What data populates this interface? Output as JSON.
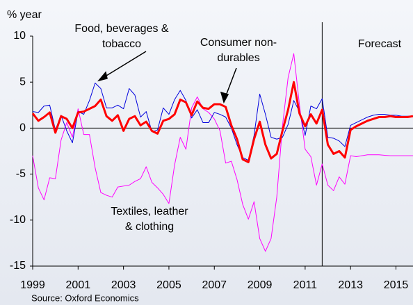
{
  "chart_data": {
    "type": "line",
    "y_label": "% year",
    "source": "Source: Oxford Economics",
    "xlim": [
      1999,
      2015.75
    ],
    "xticks": [
      1999,
      2001,
      2003,
      2005,
      2007,
      2009,
      2011,
      2013,
      2015
    ],
    "ylim": [
      -15,
      10
    ],
    "yticks": [
      -15,
      -10,
      -5,
      0,
      5,
      10
    ],
    "forecast": {
      "label": "Forecast",
      "x": 2011.75
    },
    "x": [
      1999,
      1999.25,
      1999.5,
      1999.75,
      2000,
      2000.25,
      2000.5,
      2000.75,
      2001,
      2001.25,
      2001.5,
      2001.75,
      2002,
      2002.25,
      2002.5,
      2002.75,
      2003,
      2003.25,
      2003.5,
      2003.75,
      2004,
      2004.25,
      2004.5,
      2004.75,
      2005,
      2005.25,
      2005.5,
      2005.75,
      2006,
      2006.25,
      2006.5,
      2006.75,
      2007,
      2007.25,
      2007.5,
      2007.75,
      2008,
      2008.25,
      2008.5,
      2008.75,
      2009,
      2009.25,
      2009.5,
      2009.75,
      2010,
      2010.25,
      2010.5,
      2010.75,
      2011,
      2011.25,
      2011.5,
      2011.75,
      2012,
      2012.25,
      2012.5,
      2012.75,
      2013,
      2013.25,
      2013.5,
      2013.75,
      2014,
      2014.25,
      2014.5,
      2014.75,
      2015,
      2015.25,
      2015.5,
      2015.75
    ],
    "series": [
      {
        "name": "Textiles, leather & clothing",
        "color": "#ff00ff",
        "width": 1,
        "values": [
          -3.0,
          -6.5,
          -7.8,
          -5.4,
          -5.5,
          -1.3,
          0.6,
          -1.0,
          2.1,
          -0.7,
          -0.7,
          -4.3,
          -7.0,
          -7.3,
          -7.5,
          -6.4,
          -6.3,
          -6.2,
          -5.8,
          -5.5,
          -4.2,
          -5.9,
          -6.5,
          -7.2,
          -8.2,
          -4.0,
          -1.0,
          -2.3,
          2.2,
          3.4,
          2.1,
          1.7,
          1.0,
          -0.3,
          -3.8,
          -3.6,
          -5.6,
          -8.3,
          -9.9,
          -8.0,
          -12.0,
          -13.4,
          -12.0,
          -7.5,
          0.2,
          5.5,
          8.1,
          2.5,
          -2.3,
          -3.1,
          -6.2,
          -3.9,
          -6.2,
          -6.8,
          -5.3,
          -6.1,
          -3.0,
          -3.1,
          -3.0,
          -2.9,
          -2.9,
          -2.9,
          -2.95,
          -3.0,
          -3.0,
          -3.0,
          -3.0,
          -3.0
        ]
      },
      {
        "name": "Food, beverages & tobacco",
        "color": "#0000dd",
        "width": 1,
        "values": [
          1.8,
          1.7,
          2.4,
          2.5,
          -0.2,
          1.4,
          -0.3,
          -1.6,
          1.8,
          1.5,
          3.0,
          4.9,
          4.3,
          2.2,
          2.2,
          2.5,
          2.1,
          4.3,
          3.6,
          1.2,
          1.8,
          -0.4,
          -0.2,
          2.2,
          1.5,
          3.1,
          4.1,
          3.0,
          1.1,
          2.0,
          0.6,
          0.6,
          1.7,
          1.5,
          1.2,
          0.0,
          -1.8,
          -3.2,
          -3.5,
          -0.8,
          3.7,
          1.5,
          -1.0,
          -1.2,
          -1.0,
          0.4,
          3.0,
          1.8,
          -0.8,
          2.4,
          2.1,
          3.2,
          -1.0,
          -1.1,
          -1.4,
          -2.0,
          0.3,
          0.6,
          0.9,
          1.2,
          1.4,
          1.5,
          1.5,
          1.4,
          1.4,
          1.3,
          1.3,
          1.3
        ]
      },
      {
        "name": "Consumer non-durables",
        "color": "#ff0000",
        "width": 3,
        "values": [
          1.6,
          0.8,
          1.2,
          1.7,
          -0.5,
          1.3,
          1.0,
          0.0,
          1.7,
          1.8,
          2.1,
          2.4,
          3.1,
          1.3,
          0.8,
          1.4,
          -0.3,
          1.0,
          1.3,
          0.3,
          0.7,
          -0.3,
          -0.6,
          0.8,
          1.0,
          1.5,
          3.1,
          2.8,
          1.4,
          2.9,
          2.2,
          2.1,
          2.6,
          2.6,
          2.3,
          0.3,
          -1.2,
          -3.4,
          -3.7,
          -1.2,
          0.7,
          -1.8,
          -3.3,
          -2.8,
          -0.3,
          2.0,
          5.0,
          1.6,
          0.2,
          1.5,
          0.5,
          2.0,
          -1.8,
          -2.8,
          -2.5,
          -3.2,
          -0.2,
          0.2,
          0.5,
          0.8,
          1.0,
          1.2,
          1.2,
          1.3,
          1.2,
          1.2,
          1.2,
          1.3
        ]
      }
    ],
    "annotations": [
      {
        "lines": [
          "Food, beverages &",
          "tobacco"
        ]
      },
      {
        "lines": [
          "Consumer non-",
          "durables"
        ]
      },
      {
        "lines": [
          "Textiles, leather",
          "& clothing"
        ]
      }
    ]
  }
}
